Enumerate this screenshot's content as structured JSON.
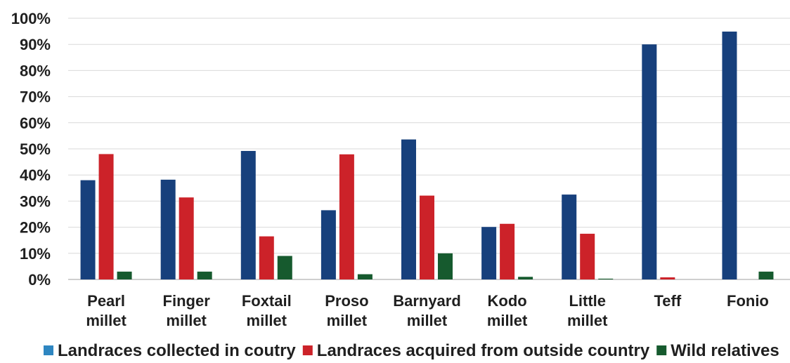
{
  "chart_data": {
    "type": "bar",
    "title": "",
    "xlabel": "",
    "ylabel": "",
    "ylim": [
      0,
      100
    ],
    "y_ticks": [
      "0%",
      "10%",
      "20%",
      "30%",
      "40%",
      "50%",
      "60%",
      "70%",
      "80%",
      "90%",
      "100%"
    ],
    "y_tick_values": [
      0,
      10,
      20,
      30,
      40,
      50,
      60,
      70,
      80,
      90,
      100
    ],
    "grid": true,
    "legend_position": "bottom",
    "categories": [
      [
        "Pearl",
        "millet"
      ],
      [
        "Finger",
        "millet"
      ],
      [
        "Foxtail",
        "millet"
      ],
      [
        "Proso",
        "millet"
      ],
      [
        "Barnyard",
        "millet"
      ],
      [
        "Kodo",
        "millet"
      ],
      [
        "Little",
        "millet"
      ],
      [
        "Teff"
      ],
      [
        "Fonio"
      ]
    ],
    "series": [
      {
        "name": "Landraces collected in coutry",
        "color": "#17407c",
        "legend_color": "#2e86c1",
        "values": [
          38,
          38.2,
          49.2,
          26.5,
          53.6,
          20.1,
          32.5,
          90,
          94.9
        ]
      },
      {
        "name": "Landraces acquired from outside country",
        "color": "#cc2229",
        "legend_color": "#cc2229",
        "values": [
          48,
          31.4,
          16.5,
          47.9,
          32.1,
          21.3,
          17.5,
          0.8,
          0
        ]
      },
      {
        "name": "Wild relatives",
        "color": "#165a2e",
        "legend_color": "#165a2e",
        "values": [
          3,
          3,
          9,
          2,
          10,
          1,
          0.3,
          0,
          3
        ]
      }
    ]
  }
}
